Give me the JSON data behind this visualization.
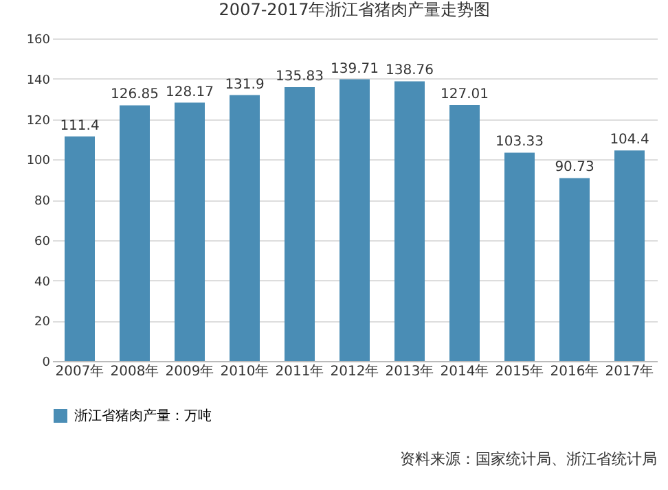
{
  "chart_data": {
    "type": "bar",
    "title": "2007-2017年浙江省猪肉产量走势图",
    "categories": [
      "2007年",
      "2008年",
      "2009年",
      "2010年",
      "2011年",
      "2012年",
      "2013年",
      "2014年",
      "2015年",
      "2016年",
      "2017年"
    ],
    "series": [
      {
        "name": "浙江省猪肉产量：万吨",
        "color": "#4a8db5",
        "values": [
          111.4,
          126.85,
          128.17,
          131.9,
          135.83,
          139.71,
          138.76,
          127.01,
          103.33,
          90.73,
          104.4
        ]
      }
    ],
    "ylim": [
      0,
      160
    ],
    "yticks": [
      0,
      20,
      40,
      60,
      80,
      100,
      120,
      140,
      160
    ],
    "grid": "y",
    "legend": "bottom",
    "data_labels": true,
    "annotations": [
      "资料来源：国家统计局、浙江省统计局"
    ]
  }
}
